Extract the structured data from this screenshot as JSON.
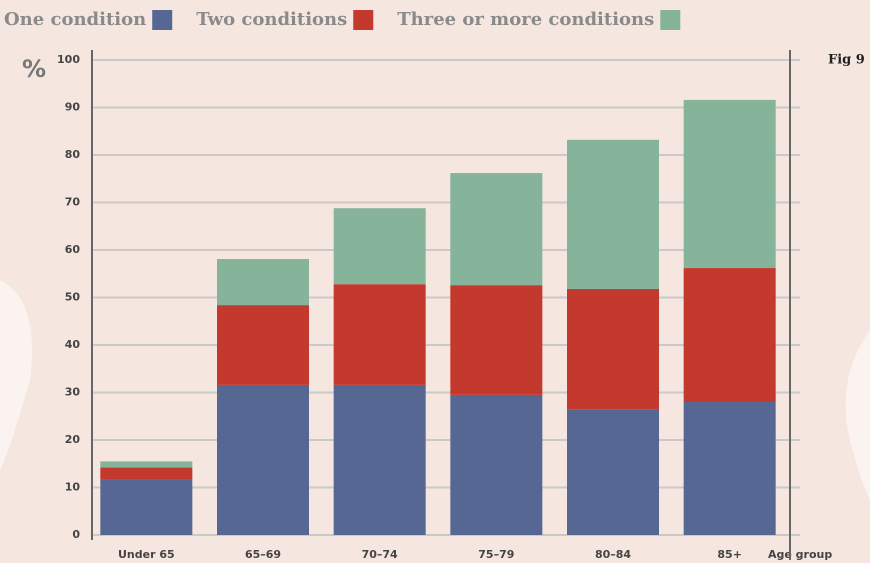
{
  "chart_data": {
    "type": "stacked_bar",
    "y_label": "%",
    "x_label": "Age group",
    "figure_label": "Fig 9",
    "categories": [
      "Under 65",
      "65–69",
      "70–74",
      "75–79",
      "80–84",
      "85+"
    ],
    "series": [
      {
        "name": "One condition",
        "color": "#566793",
        "values": [
          11.6,
          31.6,
          31.6,
          29.5,
          26.5,
          28
        ]
      },
      {
        "name": "Two conditions",
        "color": "#c4392d",
        "values": [
          2.6,
          16.8,
          21.2,
          23.1,
          25.3,
          28.2
        ]
      },
      {
        "name": "Three or more conditions",
        "color": "#85b49b",
        "values": [
          1.3,
          9.7,
          16,
          23.6,
          31.4,
          35.4
        ]
      }
    ],
    "ylim": [
      0,
      100
    ],
    "yticks": [
      0,
      10,
      20,
      30,
      40,
      50,
      60,
      70,
      80,
      90,
      100
    ],
    "grid": true
  }
}
